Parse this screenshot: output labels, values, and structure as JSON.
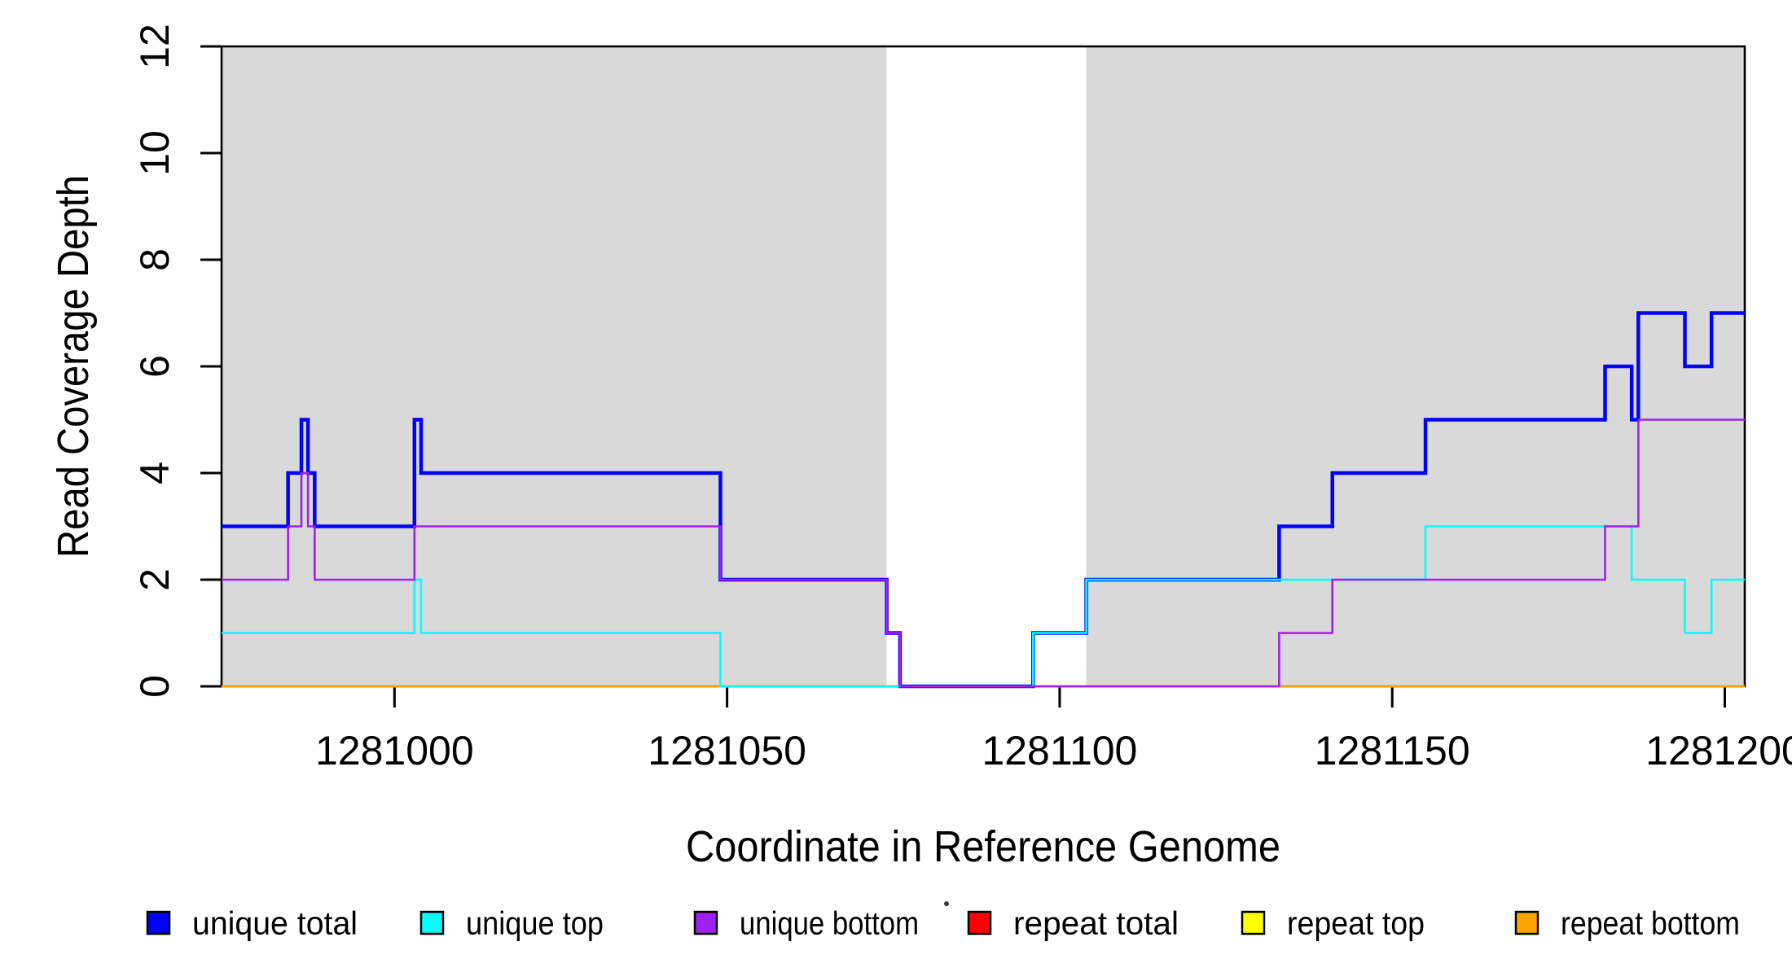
{
  "figure": {
    "background": "#ffffff"
  },
  "chart_data": {
    "type": "line",
    "subtype": "step-post",
    "title": "",
    "xlabel": "Coordinate in Reference Genome",
    "ylabel": "Read Coverage Depth",
    "xlim": [
      1280974,
      1281203
    ],
    "ylim": [
      0,
      12
    ],
    "x_ticks": {
      "values": [
        1281000,
        1281050,
        1281100,
        1281150,
        1281200
      ],
      "labels": [
        "1281000",
        "1281050",
        "1281100",
        "1281150",
        "1281200"
      ]
    },
    "y_ticks": {
      "values": [
        0,
        2,
        4,
        6,
        8,
        10,
        12
      ],
      "labels": [
        "0",
        "2",
        "4",
        "6",
        "8",
        "10",
        "12"
      ]
    },
    "grid": false,
    "legend_position": "bottom",
    "highlight_regions": [
      {
        "name": "shaded-region-left",
        "x0": 1280974,
        "x1": 1281074,
        "color": "#d9d9d9"
      },
      {
        "name": "shaded-region-right",
        "x0": 1281104,
        "x1": 1281203,
        "color": "#d9d9d9"
      }
    ],
    "series": [
      {
        "name": "unique total",
        "color": "#0000ff",
        "line_width": 4.5,
        "steps": [
          [
            1280974,
            3
          ],
          [
            1280984,
            4
          ],
          [
            1280986,
            5
          ],
          [
            1280987,
            4
          ],
          [
            1280988,
            3
          ],
          [
            1281003,
            5
          ],
          [
            1281004,
            4
          ],
          [
            1281049,
            2
          ],
          [
            1281074,
            1
          ],
          [
            1281076,
            0
          ],
          [
            1281096,
            1
          ],
          [
            1281104,
            2
          ],
          [
            1281133,
            3
          ],
          [
            1281141,
            4
          ],
          [
            1281155,
            5
          ],
          [
            1281182,
            6
          ],
          [
            1281186,
            5
          ],
          [
            1281187,
            7
          ],
          [
            1281194,
            6
          ],
          [
            1281198,
            7
          ]
        ]
      },
      {
        "name": "unique top",
        "color": "#00ffff",
        "line_width": 2.6,
        "steps": [
          [
            1280974,
            1
          ],
          [
            1281003,
            2
          ],
          [
            1281004,
            1
          ],
          [
            1281049,
            0
          ],
          [
            1281096,
            1
          ],
          [
            1281104,
            2
          ],
          [
            1281155,
            3
          ],
          [
            1281186,
            2
          ],
          [
            1281194,
            1
          ],
          [
            1281198,
            2
          ]
        ]
      },
      {
        "name": "unique bottom",
        "color": "#a020f0",
        "line_width": 2.6,
        "steps": [
          [
            1280974,
            2
          ],
          [
            1280984,
            3
          ],
          [
            1280986,
            4
          ],
          [
            1280987,
            3
          ],
          [
            1280988,
            2
          ],
          [
            1281003,
            3
          ],
          [
            1281049,
            2
          ],
          [
            1281074,
            1
          ],
          [
            1281076,
            0
          ],
          [
            1281133,
            1
          ],
          [
            1281141,
            2
          ],
          [
            1281182,
            3
          ],
          [
            1281187,
            5
          ]
        ]
      },
      {
        "name": "repeat total",
        "color": "#ff0000",
        "line_width": 2.6,
        "steps": [
          [
            1280974,
            0
          ]
        ]
      },
      {
        "name": "repeat top",
        "color": "#ffff00",
        "line_width": 2.6,
        "steps": [
          [
            1280974,
            0
          ]
        ]
      },
      {
        "name": "repeat bottom",
        "color": "#ffa500",
        "line_width": 2.8,
        "steps": [
          [
            1280974,
            0
          ]
        ]
      }
    ],
    "draw_order": [
      "repeat total",
      "repeat top",
      "repeat bottom",
      "unique total",
      "unique top",
      "unique bottom"
    ]
  },
  "legend": {
    "items": [
      {
        "label": "unique total",
        "color": "#0000ff"
      },
      {
        "label": "unique top",
        "color": "#00ffff"
      },
      {
        "label": "unique bottom",
        "color": "#a020f0"
      },
      {
        "label": "repeat total",
        "color": "#ff0000"
      },
      {
        "label": "repeat top",
        "color": "#ffff00"
      },
      {
        "label": "repeat bottom",
        "color": "#ffa500"
      }
    ]
  }
}
